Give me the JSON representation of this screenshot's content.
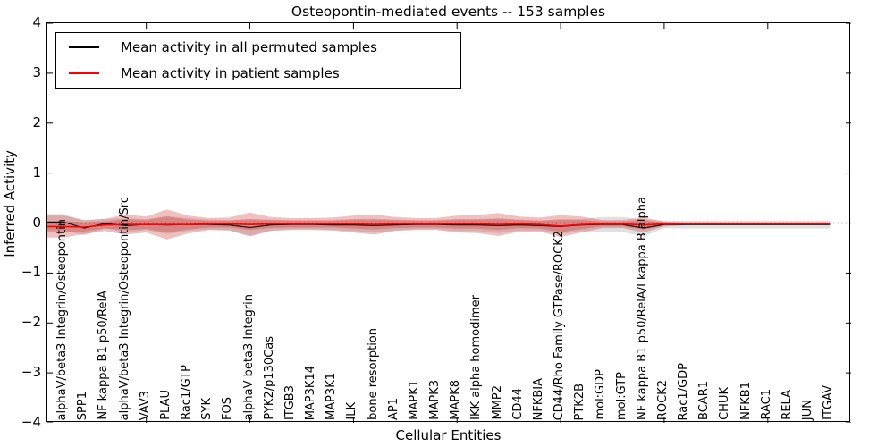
{
  "title": "Osteopontin-mediated events -- 153 samples",
  "chart_data": {
    "type": "line",
    "title": "Osteopontin-mediated events -- 153 samples",
    "xlabel": "Cellular Entities",
    "ylabel": "Inferred Activity",
    "ylim": [
      -4,
      4
    ],
    "ytick_labels": [
      "4",
      "3",
      "2",
      "1",
      "0",
      "−1",
      "−2",
      "−3",
      "−4"
    ],
    "ytick_values": [
      4,
      3,
      2,
      1,
      0,
      -1,
      -2,
      -3,
      -4
    ],
    "grid": false,
    "zero_line": {
      "y": 0,
      "style": "dotted",
      "color": "#000000"
    },
    "xtick_major_indices": [
      4,
      9,
      14,
      19,
      24,
      29,
      34
    ],
    "categories": [
      "alphaV/beta3 Integrin/Osteopontin",
      "SPP1",
      "NF kappa B1 p50/RelA",
      "alphaV/beta3 Integrin/Osteopontin/Src",
      "VAV3",
      "PLAU",
      "Rac1/GTP",
      "SYK",
      "FOS",
      "alphaV beta3 Integrin",
      "PYK2/p130Cas",
      "ITGB3",
      "MAP3K14",
      "MAP3K1",
      "ILK",
      "bone resorption",
      "AP1",
      "MAPK1",
      "MAPK3",
      "MAPK8",
      "IKK alpha homodimer",
      "MMP2",
      "CD44",
      "NFKBIA",
      "CD44/Rho Family GTPase/ROCK2",
      "PTK2B",
      "mol:GDP",
      "mol:GTP",
      "NF kappa B1 p50/RelA/I kappa B alpha",
      "ROCK2",
      "Rac1/GDP",
      "BCAR1",
      "CHUK",
      "NFKB1",
      "RAC1",
      "RELA",
      "JUN",
      "ITGAV"
    ],
    "legend": {
      "position": "upper left",
      "entries": [
        {
          "label": "Mean activity in all permuted samples",
          "color": "#000000"
        },
        {
          "label": "Mean activity in patient samples",
          "color": "#ff0000"
        }
      ]
    },
    "series": [
      {
        "name": "Mean activity in all permuted samples",
        "color": "#000000",
        "width": 1.1,
        "values": [
          0.02,
          -0.1,
          -0.01,
          -0.05,
          -0.03,
          -0.04,
          -0.03,
          -0.03,
          -0.04,
          -0.09,
          -0.04,
          -0.03,
          -0.03,
          -0.04,
          -0.04,
          -0.05,
          -0.04,
          -0.03,
          -0.03,
          -0.04,
          -0.04,
          -0.05,
          -0.04,
          -0.05,
          -0.07,
          -0.04,
          -0.03,
          -0.03,
          -0.1,
          -0.03,
          -0.03,
          -0.03,
          -0.03,
          -0.03,
          -0.03,
          -0.03,
          -0.03,
          -0.03
        ]
      },
      {
        "name": "Mean activity in patient samples",
        "color": "#ff0000",
        "width": 1.6,
        "values": [
          -0.07,
          -0.08,
          -0.04,
          -0.03,
          -0.03,
          -0.03,
          -0.03,
          -0.02,
          -0.02,
          -0.03,
          -0.02,
          -0.02,
          -0.02,
          -0.02,
          -0.02,
          -0.03,
          -0.02,
          -0.02,
          -0.02,
          -0.02,
          -0.02,
          -0.03,
          -0.02,
          -0.03,
          -0.06,
          -0.03,
          -0.02,
          -0.02,
          -0.04,
          -0.02,
          -0.015,
          -0.015,
          -0.015,
          -0.015,
          -0.015,
          -0.015,
          -0.015,
          -0.015
        ]
      }
    ],
    "bands": [
      {
        "name": "permuted-samples-std",
        "center": "permuted",
        "color": "#000000",
        "opacity": 0.12,
        "halfwidths": [
          0.16,
          0.15,
          0.1,
          0.14,
          0.11,
          0.18,
          0.13,
          0.1,
          0.1,
          0.16,
          0.11,
          0.09,
          0.09,
          0.1,
          0.12,
          0.14,
          0.11,
          0.09,
          0.09,
          0.12,
          0.12,
          0.15,
          0.11,
          0.1,
          0.15,
          0.12,
          0.15,
          0.15,
          0.17,
          0.07,
          0.08,
          0.08,
          0.08,
          0.08,
          0.08,
          0.08,
          0.08,
          0.08
        ]
      },
      {
        "name": "patient-samples-outer-band",
        "center": "patient",
        "color": "#cd3c3c",
        "opacity": 0.32,
        "halfwidths": [
          0.22,
          0.14,
          0.12,
          0.2,
          0.16,
          0.3,
          0.18,
          0.12,
          0.13,
          0.24,
          0.14,
          0.12,
          0.12,
          0.13,
          0.17,
          0.2,
          0.14,
          0.12,
          0.12,
          0.17,
          0.18,
          0.23,
          0.15,
          0.14,
          0.22,
          0.16,
          0.08,
          0.08,
          0.15,
          0.05,
          0.03,
          0.03,
          0.03,
          0.03,
          0.03,
          0.03,
          0.03,
          0.03
        ]
      },
      {
        "name": "patient-samples-inner-band",
        "center": "patient",
        "color": "#cd3c3c",
        "opacity": 0.35,
        "halfwidths": [
          0.11,
          0.09,
          0.07,
          0.11,
          0.09,
          0.16,
          0.1,
          0.07,
          0.07,
          0.11,
          0.08,
          0.07,
          0.07,
          0.07,
          0.09,
          0.1,
          0.08,
          0.07,
          0.07,
          0.09,
          0.09,
          0.11,
          0.08,
          0.08,
          0.12,
          0.09,
          0.05,
          0.05,
          0.09,
          0.03,
          0.02,
          0.02,
          0.02,
          0.02,
          0.02,
          0.02,
          0.02,
          0.02
        ]
      }
    ]
  }
}
